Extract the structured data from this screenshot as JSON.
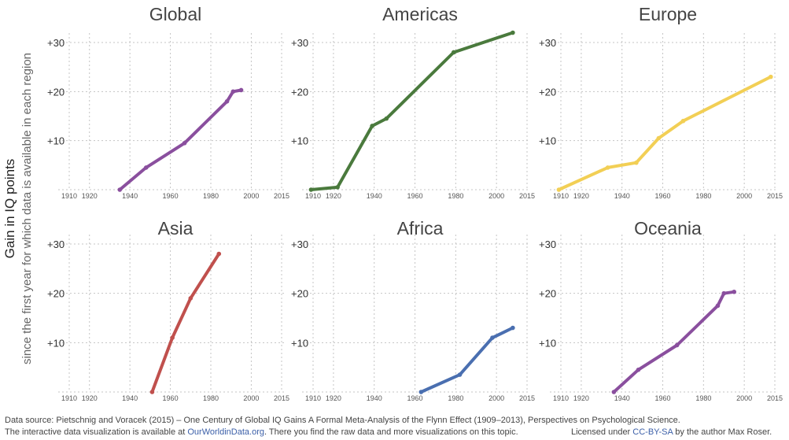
{
  "y_axis": {
    "label": "Gain in IQ points",
    "sublabel": "since the first year for which data is available in each region"
  },
  "footer": {
    "line1": "Data source: Pietschnig and Voracek (2015) – One Century of Global IQ Gains A Formal Meta-Analysis of the Flynn Effect (1909–2013), Perspectives on Psychological Science.",
    "line2_pre": "The interactive data visualization is available at ",
    "line2_link": "OurWorldinData.org",
    "line2_post": ". There you find the raw data and more visualizations on this topic.",
    "license_pre": "Licensed under ",
    "license_link": "CC-BY-SA",
    "license_post": " by the author Max Roser."
  },
  "chart_data": [
    {
      "type": "line",
      "title": "Global",
      "color": "#8a4f9e",
      "xlim": [
        1910,
        2015
      ],
      "ylim": [
        0,
        30
      ],
      "x_ticks": [
        "1910",
        "1920",
        "1940",
        "1960",
        "1980",
        "2000",
        "2015"
      ],
      "y_ticks": [
        "+10",
        "+20",
        "+30"
      ],
      "series": [
        {
          "x": [
            1935,
            1948,
            1967,
            1988,
            1991,
            1995
          ],
          "y": [
            0,
            4.5,
            9.5,
            18,
            20,
            20.3
          ]
        }
      ]
    },
    {
      "type": "line",
      "title": "Americas",
      "color": "#4a7a3d",
      "xlim": [
        1910,
        2015
      ],
      "ylim": [
        0,
        30
      ],
      "x_ticks": [
        "1910",
        "1920",
        "1940",
        "1960",
        "1980",
        "2000",
        "2015"
      ],
      "y_ticks": [
        "+10",
        "+20",
        "+30"
      ],
      "series": [
        {
          "x": [
            1909,
            1922,
            1939,
            1946,
            1979,
            2008
          ],
          "y": [
            0,
            0.5,
            13,
            14.5,
            28,
            32
          ]
        }
      ]
    },
    {
      "type": "line",
      "title": "Europe",
      "color": "#f2cf55",
      "xlim": [
        1910,
        2015
      ],
      "ylim": [
        0,
        30
      ],
      "x_ticks": [
        "1910",
        "1920",
        "1940",
        "1960",
        "1980",
        "2000",
        "2015"
      ],
      "y_ticks": [
        "+10",
        "+20",
        "+30"
      ],
      "series": [
        {
          "x": [
            1909,
            1933,
            1947,
            1958,
            1970,
            2013
          ],
          "y": [
            0,
            4.5,
            5.5,
            10.5,
            14,
            23
          ]
        }
      ]
    },
    {
      "type": "line",
      "title": "Asia",
      "color": "#c0504d",
      "xlim": [
        1910,
        2015
      ],
      "ylim": [
        0,
        30
      ],
      "x_ticks": [
        "1910",
        "1920",
        "1940",
        "1960",
        "1980",
        "2000",
        "2015"
      ],
      "y_ticks": [
        "+10",
        "+20",
        "+30"
      ],
      "series": [
        {
          "x": [
            1951,
            1961,
            1970,
            1984
          ],
          "y": [
            0,
            11,
            19,
            28
          ]
        }
      ]
    },
    {
      "type": "line",
      "title": "Africa",
      "color": "#4a6fb0",
      "xlim": [
        1910,
        2015
      ],
      "ylim": [
        0,
        30
      ],
      "x_ticks": [
        "1910",
        "1920",
        "1940",
        "1960",
        "1980",
        "2000",
        "2015"
      ],
      "y_ticks": [
        "+10",
        "+20",
        "+30"
      ],
      "series": [
        {
          "x": [
            1963,
            1982,
            1998,
            2008
          ],
          "y": [
            0,
            3.5,
            11,
            13
          ]
        }
      ]
    },
    {
      "type": "line",
      "title": "Oceania",
      "color": "#8a4f9e",
      "xlim": [
        1910,
        2015
      ],
      "ylim": [
        0,
        30
      ],
      "x_ticks": [
        "1910",
        "1920",
        "1940",
        "1960",
        "1980",
        "2000",
        "2015"
      ],
      "y_ticks": [
        "+10",
        "+20",
        "+30"
      ],
      "series": [
        {
          "x": [
            1936,
            1948,
            1967,
            1987,
            1990,
            1995
          ],
          "y": [
            0,
            4.5,
            9.5,
            17.5,
            20,
            20.3
          ]
        }
      ]
    }
  ]
}
